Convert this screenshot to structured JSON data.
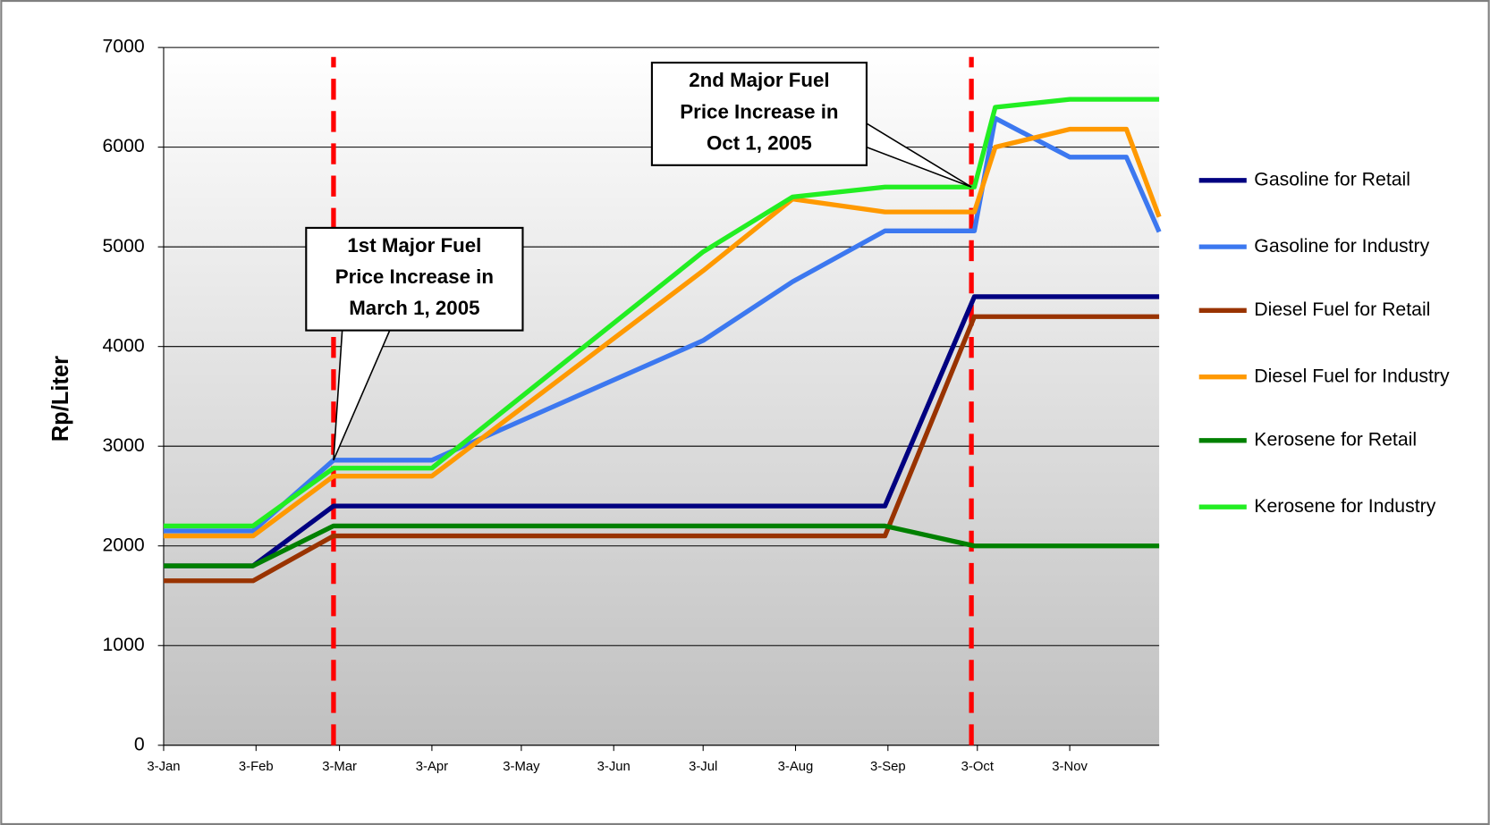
{
  "chart_data": {
    "type": "line",
    "y_label": "Rp/Liter",
    "x": [
      0,
      30,
      57,
      90,
      181,
      211,
      242,
      272,
      279,
      304,
      323,
      334
    ],
    "xlim": [
      0,
      334
    ],
    "xticks": [
      {
        "value": 0,
        "label": "3-Jan"
      },
      {
        "value": 31,
        "label": "3-Feb"
      },
      {
        "value": 59,
        "label": "3-Mar"
      },
      {
        "value": 90,
        "label": "3-Apr"
      },
      {
        "value": 120,
        "label": "3-May"
      },
      {
        "value": 151,
        "label": "3-Jun"
      },
      {
        "value": 181,
        "label": "3-Jul"
      },
      {
        "value": 212,
        "label": "3-Aug"
      },
      {
        "value": 243,
        "label": "3-Sep"
      },
      {
        "value": 273,
        "label": "3-Oct"
      },
      {
        "value": 304,
        "label": "3-Nov"
      }
    ],
    "ylim": [
      0,
      7000
    ],
    "yticks": [
      0,
      1000,
      2000,
      3000,
      4000,
      5000,
      6000,
      7000
    ],
    "grid": true,
    "legend": "right",
    "series": [
      {
        "name": "Gasoline for Retail",
        "color": "#000080",
        "values": [
          1800,
          1800,
          2400,
          2400,
          2400,
          2400,
          2400,
          4500,
          4500,
          4500,
          4500,
          4500
        ]
      },
      {
        "name": "Gasoline for Industry",
        "color": "#3c78f0",
        "values": [
          2150,
          2150,
          2860,
          2860,
          4060,
          4650,
          5160,
          5160,
          6290,
          5900,
          5900,
          5150
        ]
      },
      {
        "name": "Diesel Fuel for Retail",
        "color": "#993300",
        "values": [
          1650,
          1650,
          2100,
          2100,
          2100,
          2100,
          2100,
          4300,
          4300,
          4300,
          4300,
          4300
        ]
      },
      {
        "name": "Diesel Fuel for Industry",
        "color": "#ff9900",
        "values": [
          2100,
          2100,
          2700,
          2700,
          4760,
          5480,
          5350,
          5350,
          6000,
          6180,
          6180,
          5300
        ]
      },
      {
        "name": "Kerosene for Retail",
        "color": "#008000",
        "values": [
          1800,
          1800,
          2200,
          2200,
          2200,
          2200,
          2200,
          2000,
          2000,
          2000,
          2000,
          2000
        ]
      },
      {
        "name": "Kerosene for Industry",
        "color": "#22ee22",
        "values": [
          2200,
          2200,
          2780,
          2780,
          4950,
          5500,
          5600,
          5600,
          6400,
          6480,
          6480,
          6480
        ]
      }
    ],
    "event_lines": {
      "color": "#ff0000",
      "x": [
        57,
        271
      ]
    },
    "annotations": [
      {
        "lines": [
          "1st Major Fuel",
          "Price Increase in",
          "March 1, 2005"
        ],
        "x": 57,
        "y": 2860
      },
      {
        "lines": [
          "2nd Major Fuel",
          "Price Increase in",
          "Oct 1, 2005"
        ],
        "x": 271,
        "y": 5600
      }
    ]
  }
}
